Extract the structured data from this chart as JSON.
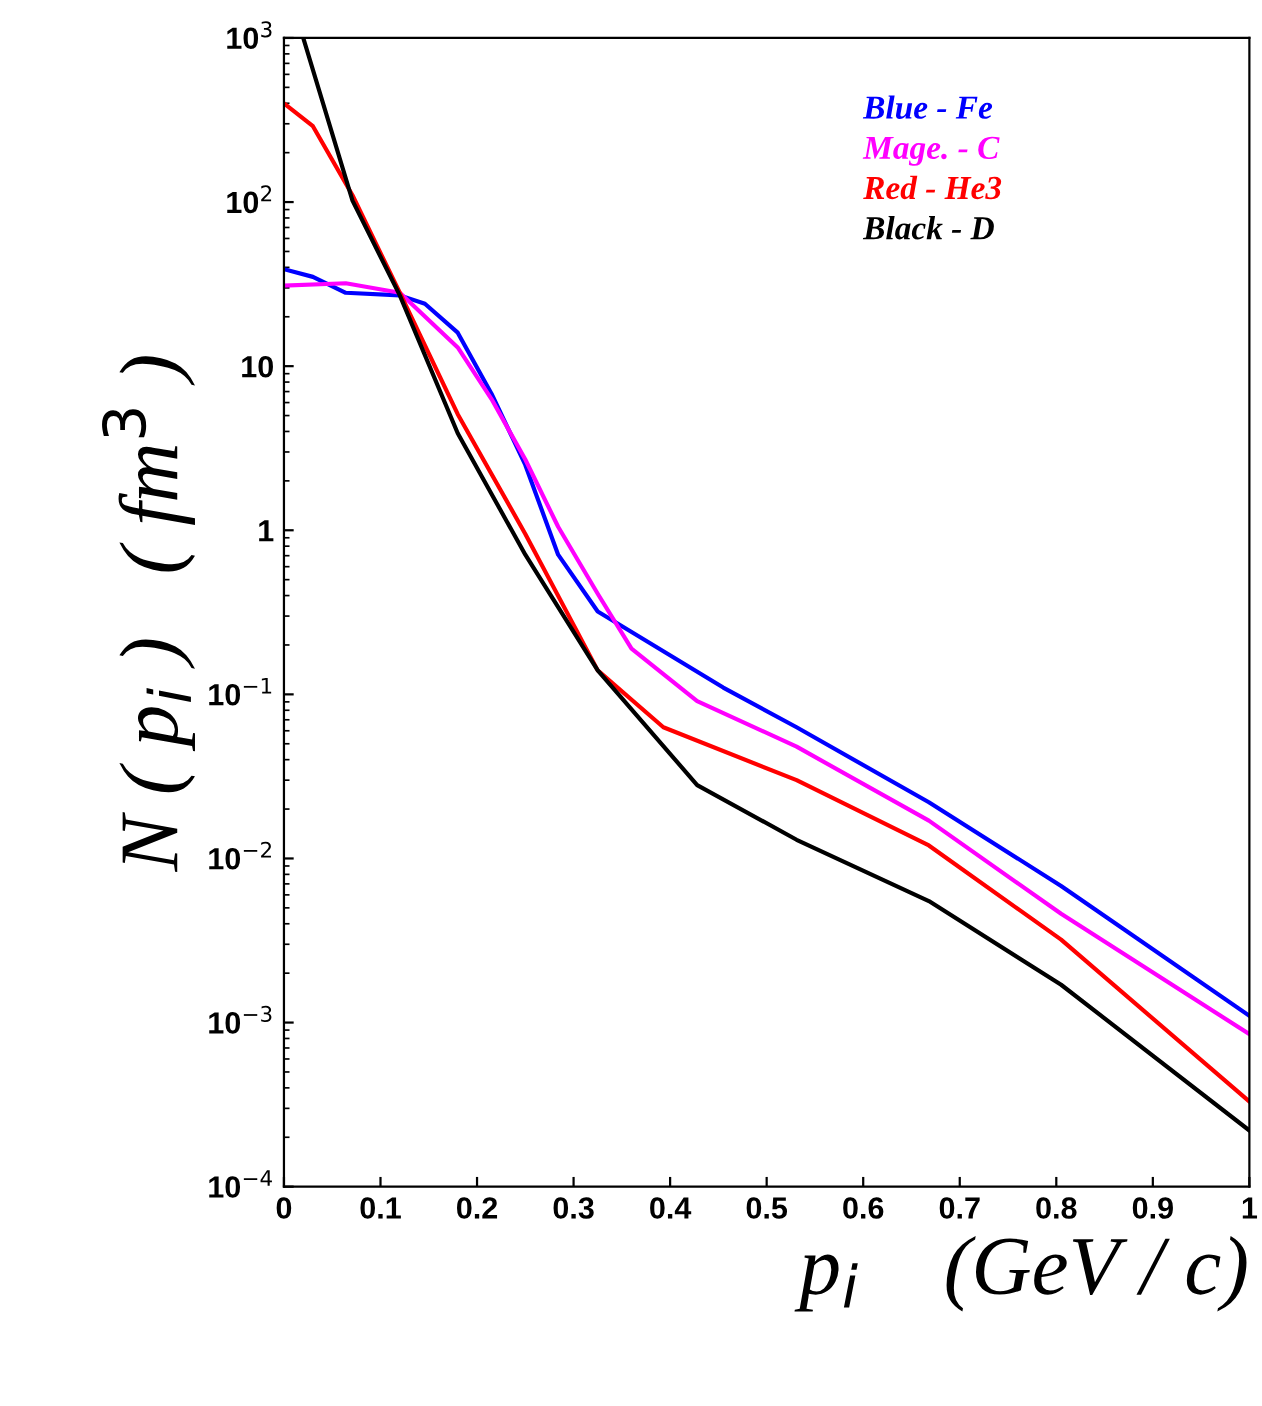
{
  "chart_data": {
    "type": "line",
    "xlabel": "p$_{i}$    (GeV / c)",
    "ylabel": "N ( p$_{i}$ )   ( fm$^{3}$ )",
    "log": "y",
    "xlim": [
      0,
      1
    ],
    "ylim": [
      0.0001,
      1000
    ],
    "xticks": [
      0,
      0.1,
      0.2,
      0.3,
      0.4,
      0.5,
      0.6,
      0.7,
      0.8,
      0.9,
      1
    ],
    "yticks": [
      {
        "value": 0.0001,
        "label": "10$^{−4}$"
      },
      {
        "value": 0.001,
        "label": "10$^{−3}$"
      },
      {
        "value": 0.01,
        "label": "10$^{−2}$"
      },
      {
        "value": 0.1,
        "label": "10$^{−1}$"
      },
      {
        "value": 1,
        "label": "1"
      },
      {
        "value": 10,
        "label": "10"
      },
      {
        "value": 100,
        "label": "10$^{2}$"
      },
      {
        "value": 1000,
        "label": "10$^{3}$"
      }
    ],
    "legend": "top right",
    "grid": false,
    "marker": "none",
    "line_style": "solid",
    "series": [
      {
        "name": "Blue - Fe",
        "color": "#0000ff",
        "x": [
          0,
          0.03,
          0.064,
          0.12,
          0.146,
          0.18,
          0.215,
          0.25,
          0.284,
          0.325,
          0.455,
          0.531,
          0.668,
          0.805,
          1
        ],
        "values": [
          39,
          35,
          28,
          27,
          24,
          16,
          6.8,
          2.5,
          0.71,
          0.32,
          0.11,
          0.063,
          0.022,
          0.0068,
          0.0011
        ]
      },
      {
        "name": "Mage. - C",
        "color": "#ff00ff",
        "x": [
          0,
          0.064,
          0.12,
          0.18,
          0.215,
          0.25,
          0.284,
          0.325,
          0.36,
          0.428,
          0.531,
          0.668,
          0.805,
          1
        ],
        "values": [
          31,
          32,
          28,
          13,
          6.3,
          2.7,
          1.05,
          0.41,
          0.19,
          0.091,
          0.048,
          0.017,
          0.0046,
          0.00085
        ]
      },
      {
        "name": "Red - He3",
        "color": "#ff0000",
        "x": [
          0,
          0.03,
          0.071,
          0.12,
          0.18,
          0.25,
          0.325,
          0.393,
          0.531,
          0.668,
          0.805,
          1
        ],
        "values": [
          400,
          290,
          110,
          28,
          5.1,
          0.95,
          0.14,
          0.063,
          0.03,
          0.012,
          0.0032,
          0.00033
        ]
      },
      {
        "name": "Black - D",
        "color": "#000000",
        "x": [
          0.02,
          0.071,
          0.12,
          0.18,
          0.25,
          0.325,
          0.428,
          0.531,
          0.668,
          0.805,
          1
        ],
        "values": [
          1000,
          102,
          27,
          3.9,
          0.71,
          0.14,
          0.028,
          0.013,
          0.0055,
          0.0017,
          0.00022
        ]
      }
    ]
  }
}
